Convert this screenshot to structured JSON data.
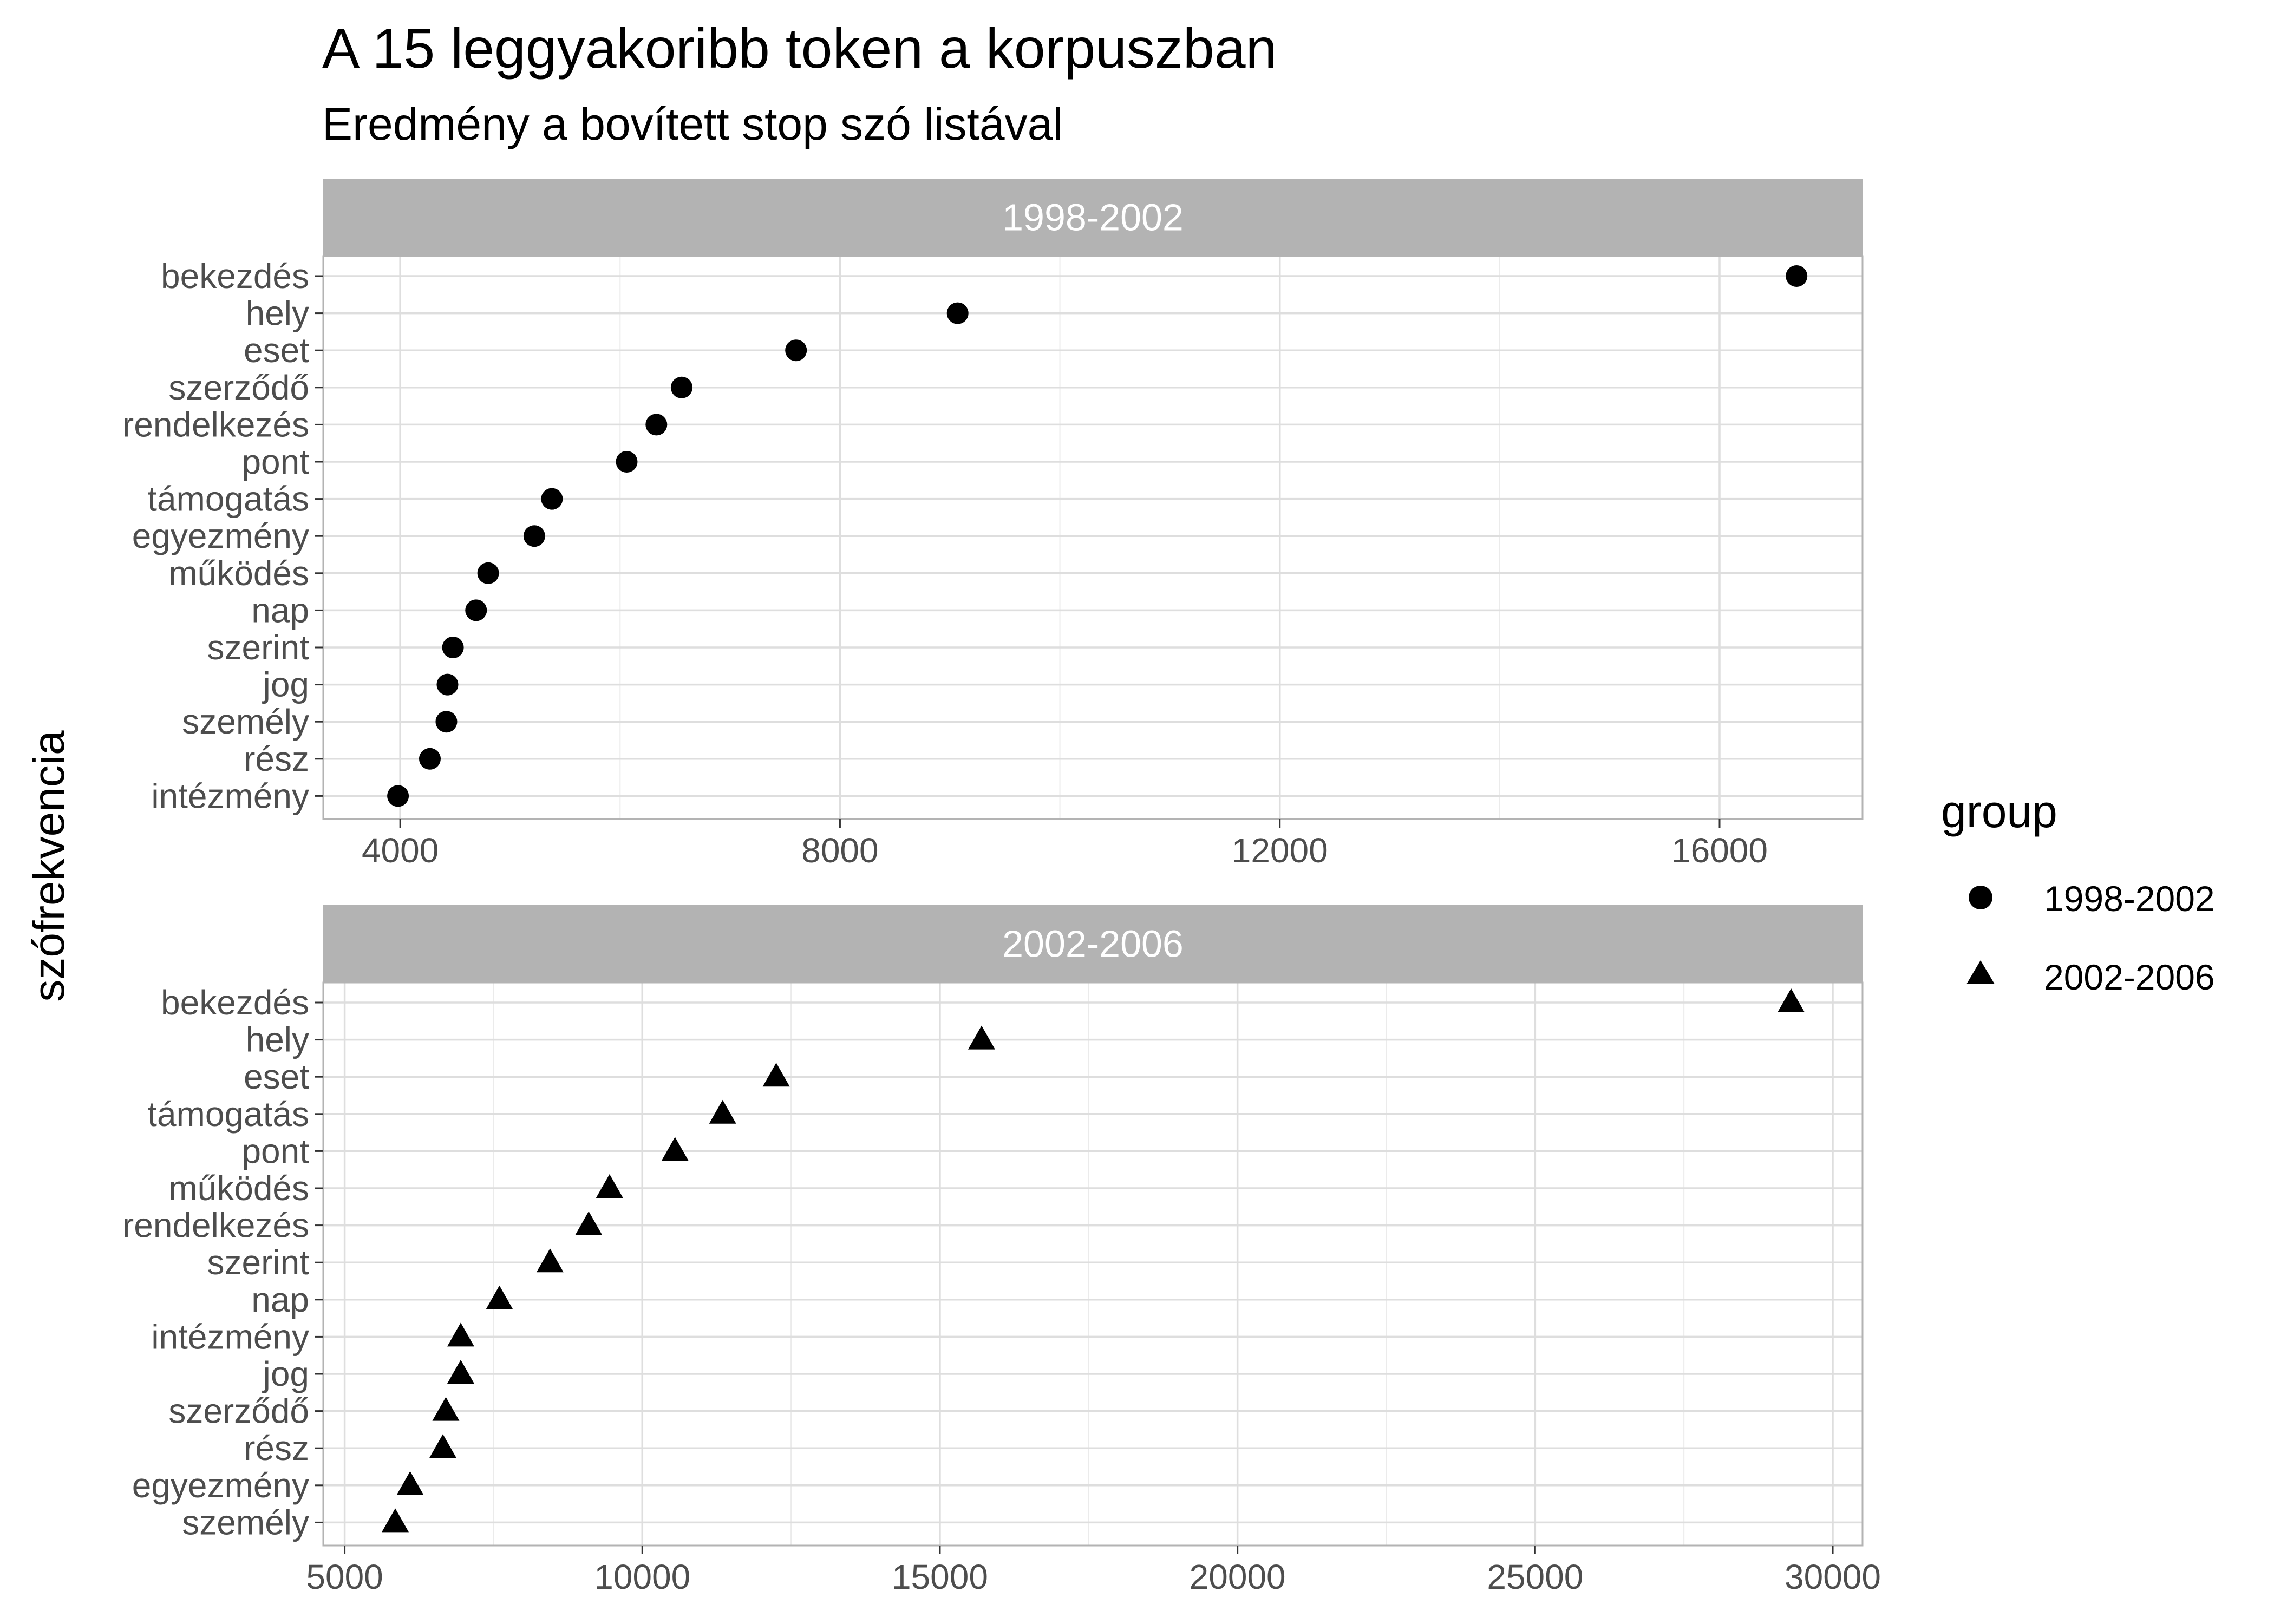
{
  "chart_data": {
    "type": "scatter",
    "title": "A 15 leggyakoribb token a korpuszban",
    "subtitle": "Eredmény a bovített stop szó listával",
    "ylabel": "szófrekvencia",
    "legend": {
      "title": "group",
      "position": "right",
      "entries": [
        {
          "label": "1998-2002",
          "shape": "circle"
        },
        {
          "label": "2002-2006",
          "shape": "triangle"
        }
      ]
    },
    "grid": true,
    "panels": [
      {
        "strip": "1998-2002",
        "shape": "circle",
        "xlim": [
          3300,
          17300
        ],
        "xticks": [
          4000,
          8000,
          12000,
          16000
        ],
        "xtick_labels": [
          "4000",
          "8000",
          "12000",
          "16000"
        ],
        "minor_xticks": [
          6000,
          10000,
          14000
        ],
        "categories": [
          "bekezdés",
          "hely",
          "eset",
          "szerződő",
          "rendelkezés",
          "pont",
          "támogatás",
          "egyezmény",
          "működés",
          "nap",
          "szerint",
          "jog",
          "személy",
          "rész",
          "intézmény"
        ],
        "values": [
          16700,
          9070,
          7600,
          6560,
          6330,
          6060,
          5380,
          5220,
          4800,
          4690,
          4480,
          4430,
          4420,
          4270,
          3980
        ]
      },
      {
        "strip": "2002-2006",
        "shape": "triangle",
        "xlim": [
          4640,
          30500
        ],
        "xticks": [
          5000,
          10000,
          15000,
          20000,
          25000,
          30000
        ],
        "xtick_labels": [
          "5000",
          "10000",
          "15000",
          "20000",
          "25000",
          "30000"
        ],
        "minor_xticks": [
          7500,
          12500,
          17500,
          22500,
          27500
        ],
        "categories": [
          "bekezdés",
          "hely",
          "eset",
          "támogatás",
          "pont",
          "működés",
          "rendelkezés",
          "szerint",
          "nap",
          "intézmény",
          "jog",
          "szerződő",
          "rész",
          "egyezmény",
          "személy"
        ],
        "values": [
          29300,
          15700,
          12250,
          11350,
          10550,
          9450,
          9100,
          8450,
          7600,
          6950,
          6950,
          6700,
          6650,
          6100,
          5850
        ]
      }
    ]
  }
}
